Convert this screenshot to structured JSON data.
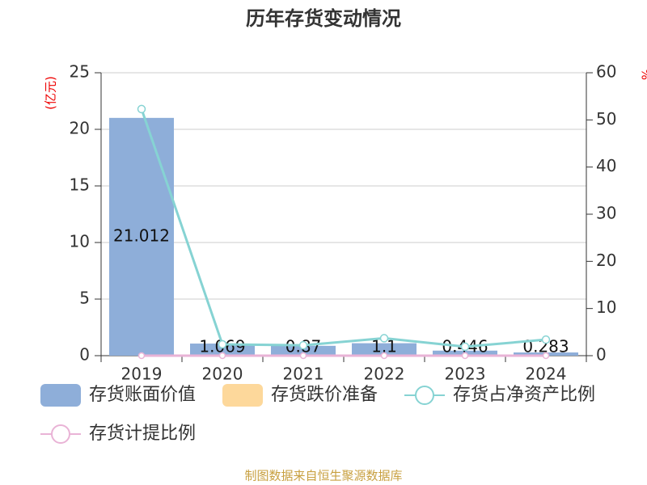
{
  "chart_data": {
    "type": "bar-line",
    "title": "历年存货变动情况",
    "y_label": "(亿元)",
    "y2_label": "%",
    "source": "制图数据来自恒生聚源数据库",
    "categories": [
      "2019",
      "2020",
      "2021",
      "2022",
      "2023",
      "2024"
    ],
    "series": [
      {
        "name": "存货账面价值",
        "type": "bar",
        "color": "#8eaed9",
        "values": [
          21.012,
          1.069,
          0.87,
          1.1,
          0.446,
          0.283
        ]
      },
      {
        "name": "存货跌价准备",
        "type": "bar",
        "color": "#fdd89b",
        "values": [
          0,
          0,
          0,
          0,
          0,
          0
        ]
      },
      {
        "name": "存货占净资产比例",
        "type": "line",
        "axis": "y2",
        "color": "#86d3d3",
        "values": [
          52.3,
          2.4,
          2.2,
          3.7,
          1.9,
          3.4
        ]
      },
      {
        "name": "存货计提比例",
        "type": "line",
        "axis": "y2",
        "color": "#e9b3d6",
        "values": [
          0,
          0,
          0,
          0,
          0,
          0
        ]
      }
    ],
    "ylim": [
      0,
      25
    ],
    "yticks": [
      0,
      5,
      10,
      15,
      20,
      25
    ],
    "y2lim": [
      0,
      60
    ],
    "y2ticks": [
      0,
      10,
      20,
      30,
      40,
      50,
      60
    ],
    "grid": true
  }
}
